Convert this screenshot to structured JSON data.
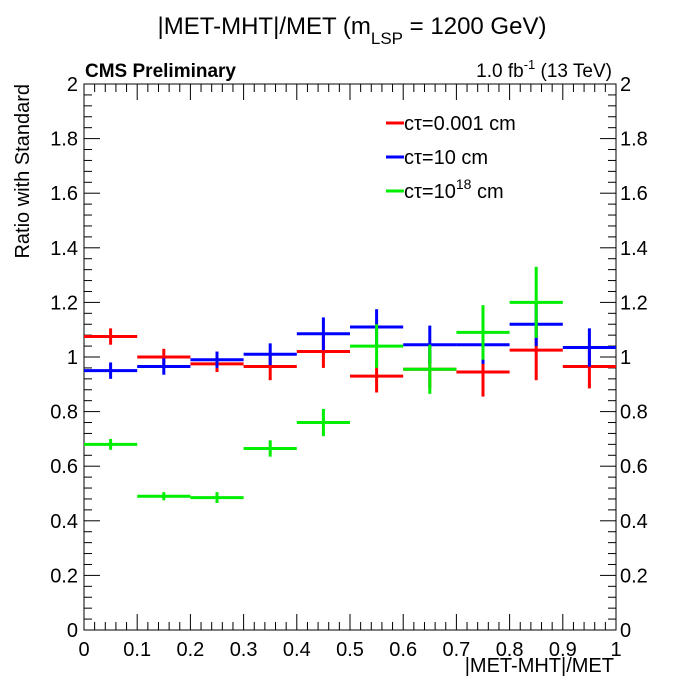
{
  "chart_data": {
    "type": "scatter",
    "title": {
      "main": "|MET-MHT|/MET (m",
      "sub": "LSP",
      "tail": " = 1200 GeV)"
    },
    "label_left": "CMS Preliminary",
    "lumi": {
      "pre": "1.0 fb",
      "sup": "-1",
      "post": " (13 TeV)"
    },
    "xlabel": "|MET-MHT|/MET",
    "ylabel": "Ratio with Standard",
    "xlim": [
      0,
      1
    ],
    "ylim": [
      0,
      2
    ],
    "x_ticks": [
      "0",
      "0.1",
      "0.2",
      "0.3",
      "0.4",
      "0.5",
      "0.6",
      "0.7",
      "0.8",
      "0.9",
      "1"
    ],
    "y_ticks": [
      "0",
      "0.2",
      "0.4",
      "0.6",
      "0.8",
      "1",
      "1.2",
      "1.4",
      "1.6",
      "1.8",
      "2"
    ],
    "right_axis_ticks": true,
    "legend_position": "top-right",
    "bin_edges": [
      0,
      0.1,
      0.2,
      0.3,
      0.4,
      0.5,
      0.6,
      0.7,
      0.8,
      0.9,
      1.0
    ],
    "series": [
      {
        "name_parts": [
          "cτ=0.001 cm"
        ],
        "name_sup": "",
        "color": "#ff0000",
        "values": [
          1.075,
          1.0,
          0.975,
          0.965,
          1.02,
          0.93,
          0.955,
          0.945,
          1.025,
          0.965
        ],
        "errors": [
          0.03,
          0.03,
          0.03,
          0.05,
          0.06,
          0.06,
          0.07,
          0.09,
          0.11,
          0.08
        ]
      },
      {
        "name_parts": [
          "cτ=10 cm"
        ],
        "name_sup": "",
        "color": "#0000ff",
        "values": [
          0.95,
          0.965,
          0.99,
          1.01,
          1.085,
          1.11,
          1.045,
          1.045,
          1.12,
          1.035
        ],
        "errors": [
          0.03,
          0.03,
          0.03,
          0.04,
          0.06,
          0.065,
          0.07,
          0.07,
          0.08,
          0.07
        ]
      },
      {
        "name_parts": [
          "cτ=10",
          " cm"
        ],
        "name_sup": "18",
        "color": "#00ee00",
        "values": [
          0.68,
          0.49,
          0.485,
          0.665,
          0.76,
          1.04,
          0.955,
          1.09,
          1.2,
          null
        ],
        "errors": [
          0.02,
          0.015,
          0.02,
          0.03,
          0.05,
          0.08,
          0.09,
          0.1,
          0.13,
          null
        ]
      }
    ]
  }
}
